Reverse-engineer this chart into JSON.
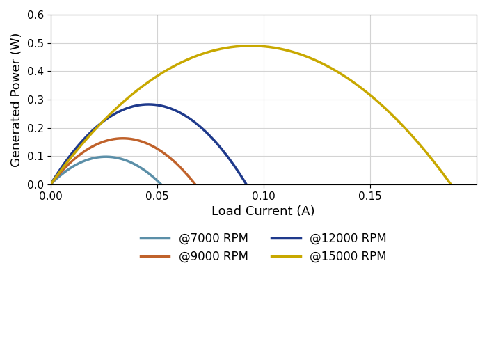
{
  "series": [
    {
      "label": "@7000 RPM",
      "Imax": 0.052,
      "Ppeak": 0.098,
      "color": "#5B8FA8"
    },
    {
      "label": "@9000 RPM",
      "Imax": 0.068,
      "Ppeak": 0.163,
      "color": "#C0622B"
    },
    {
      "label": "@12000 RPM",
      "Imax": 0.092,
      "Ppeak": 0.283,
      "color": "#1F3A8C"
    },
    {
      "label": "@15000 RPM",
      "Imax": 0.188,
      "Ppeak": 0.49,
      "color": "#C8A800"
    }
  ],
  "xlabel": "Load Current (A)",
  "ylabel": "Generated Power (W)",
  "xlim": [
    0,
    0.2
  ],
  "ylim": [
    0,
    0.6
  ],
  "xticks": [
    0,
    0.05,
    0.1,
    0.15
  ],
  "yticks": [
    0,
    0.1,
    0.2,
    0.3,
    0.4,
    0.5,
    0.6
  ],
  "grid": true,
  "linewidth": 2.5,
  "n_points": 500
}
